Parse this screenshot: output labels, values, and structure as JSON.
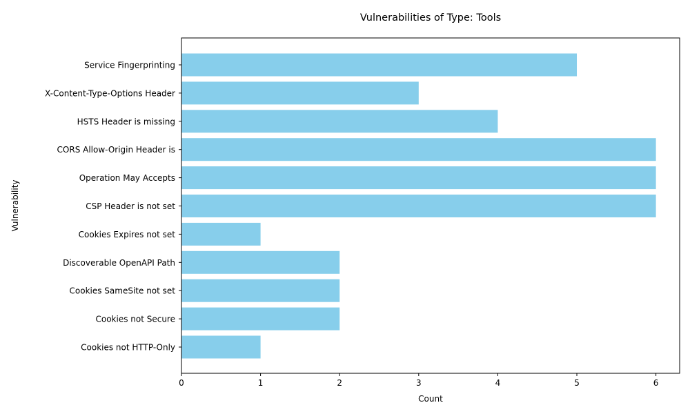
{
  "chart_data": {
    "type": "bar",
    "orientation": "horizontal",
    "title": "Vulnerabilities of Type: Tools",
    "xlabel": "Count",
    "ylabel": "Vulnerability",
    "categories": [
      "Service Fingerprinting",
      "X-Content-Type-Options Header",
      "HSTS Header is missing",
      "CORS Allow-Origin Header is",
      "Operation May Accepts",
      "CSP Header is not set",
      "Cookies Expires not set",
      "Discoverable OpenAPI Path",
      "Cookies SameSite not set",
      "Cookies not Secure",
      "Cookies not HTTP-Only"
    ],
    "values": [
      5,
      3,
      4,
      6,
      6,
      6,
      1,
      2,
      2,
      2,
      1
    ],
    "xlim": [
      0,
      6.3
    ],
    "xticks": [
      0,
      1,
      2,
      3,
      4,
      5,
      6
    ],
    "bar_color": "#87ceeb",
    "grid": false,
    "legend": "none"
  }
}
